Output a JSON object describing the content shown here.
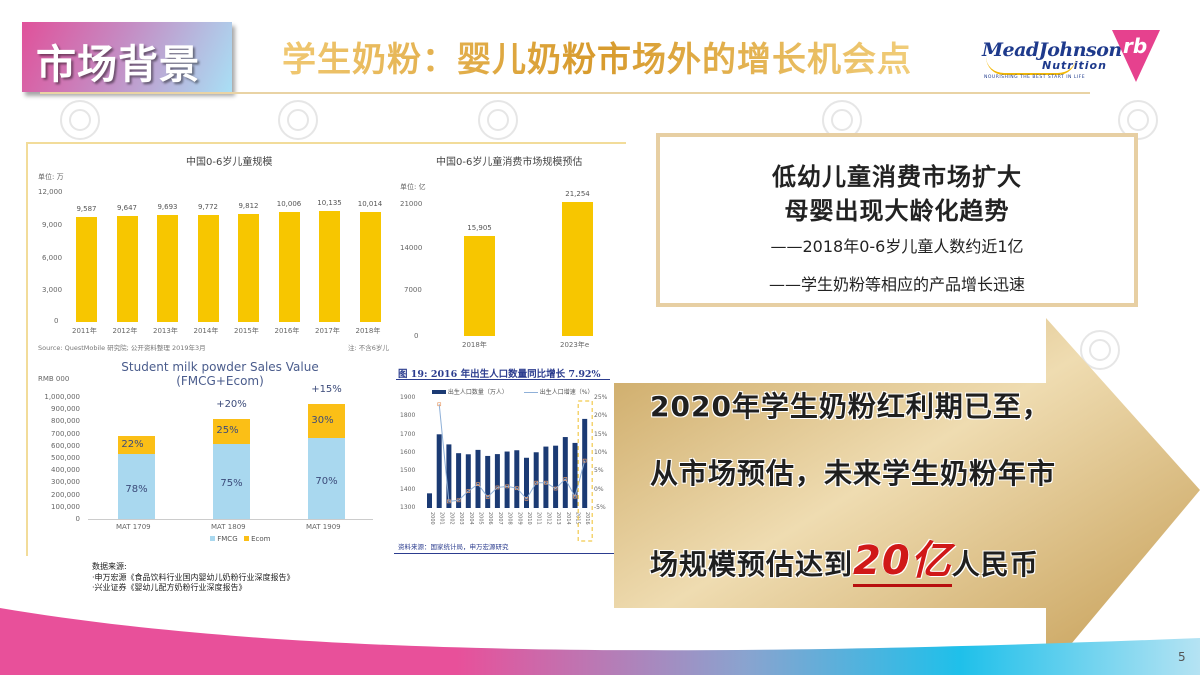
{
  "header": {
    "section_tag": "市场背景",
    "title": "学生奶粉：婴儿奶粉市场外的增长机会点",
    "logo_meadjohnson": {
      "name": "MeadJohnson",
      "sub": "Nutrition",
      "tagline": "NOURISHING THE BEST START IN LIFE"
    },
    "logo_rb": "rb"
  },
  "colors": {
    "accent_gold": "#e8b84a",
    "bar_yellow": "#f7c600",
    "fmcg_blue": "#a9d8ef",
    "ecom_orange": "#fbbf16",
    "birth_navy": "#1b3a73",
    "highlight_red": "#d01818",
    "pink": "#e0519a",
    "cyan": "#1fc0ea"
  },
  "chart_data": [
    {
      "type": "bar",
      "title": "中国0-6岁儿童规模",
      "unit_label": "单位: 万",
      "categories": [
        "2011年",
        "2012年",
        "2013年",
        "2014年",
        "2015年",
        "2016年",
        "2017年",
        "2018年"
      ],
      "values": [
        9587,
        9647,
        9693,
        9772,
        9812,
        10006,
        10135,
        10014
      ],
      "value_labels": [
        "9,587",
        "9,647",
        "9,693",
        "9,772",
        "9,812",
        "10,006",
        "10,135",
        "10,014"
      ],
      "yticks": [
        "12,000",
        "9,000",
        "6,000",
        "3,000",
        "0"
      ],
      "ylim": [
        0,
        12000
      ],
      "source": "Source: QuestMobile 研究院; 公开资料整理 2019年3月",
      "note": "注: 不含6岁儿"
    },
    {
      "type": "bar",
      "title": "中国0-6岁儿童消费市场规模预估",
      "unit_label": "单位: 亿",
      "categories": [
        "2018年",
        "2023年e"
      ],
      "values": [
        15905,
        21254
      ],
      "value_labels": [
        "15,905",
        "21,254"
      ],
      "yticks": [
        "21000",
        "14000",
        "7000",
        "0"
      ],
      "ylim": [
        0,
        21000
      ]
    },
    {
      "type": "bar",
      "stacked": true,
      "title": "Student milk powder Sales Value",
      "subtitle": "(FMCG+Ecom)",
      "ylabel": "RMB 000",
      "categories": [
        "MAT 1709",
        "MAT 1809",
        "MAT 1909"
      ],
      "totals": [
        680000,
        820000,
        945000
      ],
      "series": [
        {
          "name": "FMCG",
          "share": [
            "78%",
            "75%",
            "70%"
          ],
          "values": [
            530400,
            615000,
            661500
          ]
        },
        {
          "name": "Ecom",
          "share": [
            "22%",
            "25%",
            "30%"
          ],
          "values": [
            149600,
            205000,
            283500
          ]
        }
      ],
      "growth_labels": [
        "",
        "+20%",
        "+15%"
      ],
      "yticks": [
        "1,000,000",
        "900,000",
        "800,000",
        "700,000",
        "600,000",
        "500,000",
        "400,000",
        "300,000",
        "200,000",
        "100,000",
        "0"
      ],
      "ylim": [
        0,
        1000000
      ],
      "legend": [
        "FMCG",
        "Ecom"
      ]
    },
    {
      "type": "bar+line",
      "title": "图 19: 2016 年出生人口数量同比增长 7.92%",
      "categories": [
        "2000",
        "2001",
        "2002",
        "2003",
        "2004",
        "2005",
        "2006",
        "2007",
        "2008",
        "2009",
        "2010",
        "2011",
        "2012",
        "2013",
        "2014",
        "2015",
        "2016"
      ],
      "series": [
        {
          "name": "出生人口数量（万人）",
          "type": "bar",
          "values": [
            1380,
            1702,
            1647,
            1599,
            1593,
            1617,
            1584,
            1594,
            1608,
            1615,
            1574,
            1604,
            1635,
            1640,
            1687,
            1655,
            1786
          ]
        },
        {
          "name": "出生人口增速（%）",
          "type": "line",
          "values": [
            null,
            23.3,
            -3.2,
            -2.9,
            -0.4,
            1.5,
            -2.0,
            0.6,
            0.9,
            0.4,
            -2.5,
            1.9,
            1.9,
            0.3,
            2.9,
            -1.9,
            7.92
          ]
        }
      ],
      "y_left_ticks": [
        "1900",
        "1800",
        "1700",
        "1600",
        "1500",
        "1400",
        "1300"
      ],
      "y_right_ticks": [
        "25%",
        "20%",
        "15%",
        "10%",
        "5%",
        "0%",
        "-5%"
      ],
      "ylim_left": [
        1300,
        1900
      ],
      "ylim_right": [
        -5,
        25
      ],
      "source": "资料来源：国家统计局，申万宏源研究"
    }
  ],
  "notes": {
    "heading": "数据来源:",
    "lines": [
      "·申万宏源《食品饮料行业国内婴幼儿奶粉行业深度报告》",
      "·兴业证券《婴幼儿配方奶粉行业深度报告》"
    ]
  },
  "info_box": {
    "headline1": "低幼儿童消费市场扩大",
    "headline2": "母婴出现大龄化趋势",
    "bullet1": "——2018年0-6岁儿童人数约近1亿",
    "bullet2": "——学生奶粉等相应的产品增长迅速"
  },
  "arrow": {
    "line1": "2020年学生奶粉红利期已至，",
    "line2": "从市场预估，未来学生奶粉年市",
    "line3_prefix": "场规模预估达到",
    "line3_highlight": "20亿",
    "line3_suffix": "人民币"
  },
  "footer": {
    "page_number": "5"
  }
}
